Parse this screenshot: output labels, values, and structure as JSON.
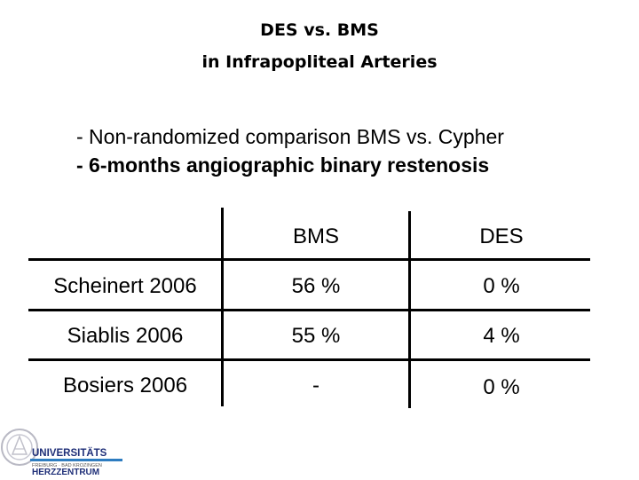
{
  "title": {
    "line1": "DES vs. BMS",
    "line2": "in Infrapopliteal Arteries"
  },
  "bullets": [
    "- Non-randomized comparison BMS vs. Cypher",
    "- 6-months angiographic binary restenosis"
  ],
  "table": {
    "headers": [
      "BMS",
      "DES"
    ],
    "rows": [
      {
        "label": "Scheinert 2006",
        "bms": "56 %",
        "des": "0 %"
      },
      {
        "label": "Siablis 2006",
        "bms": "55 %",
        "des": "4 %"
      },
      {
        "label": "Bosiers 2006",
        "bms": "-",
        "des": "0 %"
      }
    ]
  },
  "logo": {
    "line1": "UNIVERSITÄTS",
    "line2": "FREIBURG · BAD KROZINGEN",
    "line3": "HERZZENTRUM"
  }
}
